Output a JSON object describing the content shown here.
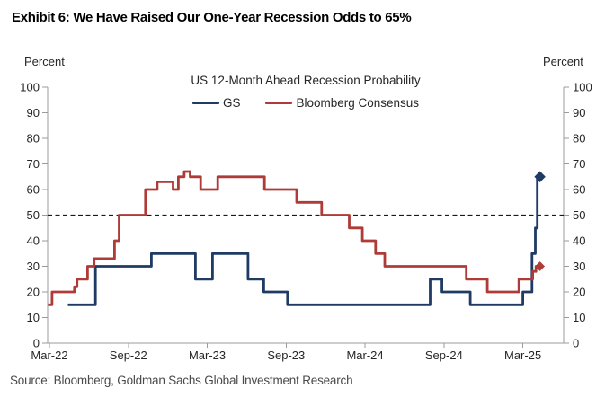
{
  "exhibit": {
    "title": "Exhibit 6: We Have Raised Our One-Year Recession Odds to 65%"
  },
  "footer": {
    "source": "Source: Bloomberg, Goldman Sachs Global Investment Research"
  },
  "chart_data": {
    "type": "line",
    "subtype": "step",
    "title": "US 12-Month Ahead Recession Probability",
    "y_axis": {
      "label": "Percent",
      "min": 0,
      "max": 100,
      "ticks": [
        0,
        10,
        20,
        30,
        40,
        50,
        60,
        70,
        80,
        90,
        100
      ],
      "mirrored_right": true
    },
    "x_axis": {
      "unit": "months-since-Mar-2022",
      "ticks": [
        {
          "label": "Mar-22",
          "m": 0
        },
        {
          "label": "Sep-22",
          "m": 6
        },
        {
          "label": "Mar-23",
          "m": 12
        },
        {
          "label": "Sep-23",
          "m": 18
        },
        {
          "label": "Mar-24",
          "m": 24
        },
        {
          "label": "Sep-24",
          "m": 30
        },
        {
          "label": "Mar-25",
          "m": 36
        }
      ]
    },
    "reference_line": {
      "value": 50,
      "style": "dashed",
      "color": "#1a1a1a"
    },
    "axis_color": "#9b9b9b",
    "text_color": "#262626",
    "legend_position": "top-center",
    "grid": false,
    "series": [
      {
        "name": "GS",
        "color": "#1f3a63",
        "end_marker": "diamond",
        "final_value": 65,
        "points": [
          [
            1.4,
            15
          ],
          [
            3.5,
            30
          ],
          [
            7.75,
            35
          ],
          [
            11.1,
            25
          ],
          [
            12.4,
            35
          ],
          [
            15.1,
            25
          ],
          [
            16.3,
            20
          ],
          [
            18.1,
            15
          ],
          [
            28.95,
            25
          ],
          [
            29.85,
            20
          ],
          [
            32.0,
            15
          ],
          [
            36.0,
            20
          ],
          [
            36.7,
            35
          ],
          [
            36.95,
            45
          ],
          [
            37.1,
            65
          ],
          [
            37.3,
            65
          ]
        ]
      },
      {
        "name": "Bloomberg Consensus",
        "color": "#ae3b38",
        "end_marker": "diamond",
        "final_value": 30,
        "points": [
          [
            -0.1,
            15
          ],
          [
            0.2,
            20
          ],
          [
            1.9,
            22
          ],
          [
            2.1,
            25
          ],
          [
            2.9,
            30
          ],
          [
            3.4,
            33
          ],
          [
            4.95,
            40
          ],
          [
            5.3,
            50
          ],
          [
            7.3,
            60
          ],
          [
            8.2,
            63
          ],
          [
            9.4,
            60
          ],
          [
            9.8,
            65
          ],
          [
            10.25,
            67
          ],
          [
            10.7,
            65
          ],
          [
            11.5,
            60
          ],
          [
            12.8,
            65
          ],
          [
            16.35,
            60
          ],
          [
            18.8,
            55
          ],
          [
            20.7,
            50
          ],
          [
            22.8,
            45
          ],
          [
            23.8,
            40
          ],
          [
            24.8,
            35
          ],
          [
            25.5,
            30
          ],
          [
            31.7,
            25
          ],
          [
            33.3,
            20
          ],
          [
            35.7,
            25
          ],
          [
            36.75,
            28
          ],
          [
            37.0,
            30
          ],
          [
            37.3,
            30
          ]
        ]
      }
    ]
  }
}
